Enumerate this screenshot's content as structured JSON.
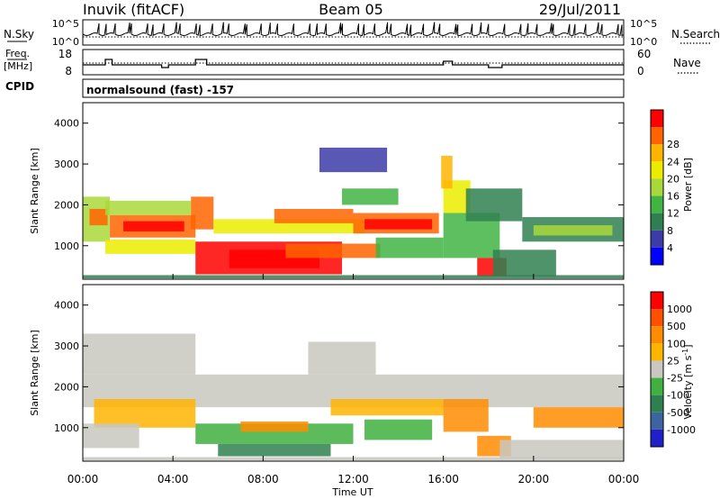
{
  "header": {
    "station": "Inuvik (fitACF)",
    "beam": "Beam 05",
    "date": "29/Jul/2011"
  },
  "strip": {
    "nsky_label": "N.Sky",
    "nsky_ticks": [
      "10^5",
      "10^0"
    ],
    "nsearch_label": "N.Search",
    "nsearch_ticks": [
      "10^5",
      "10^0"
    ],
    "freq_label": "Freq.",
    "freq_unit": "[MHz]",
    "freq_ticks": [
      "18",
      "8"
    ],
    "nave_label": "Nave",
    "nave_ticks": [
      "60",
      "0"
    ],
    "cpid_label": "CPID",
    "cpid_text": "normalsound (fast) -157"
  },
  "chart_data": [
    {
      "type": "heatmap",
      "name": "power",
      "xlabel": "Time UT",
      "ylabel": "Slant Range [km]",
      "xlim": [
        0,
        24
      ],
      "ylim": [
        180,
        4500
      ],
      "y_ticks": [
        "1000",
        "2000",
        "3000",
        "4000"
      ],
      "x_ticks": [
        "00:00",
        "04:00",
        "08:00",
        "12:00",
        "16:00",
        "20:00",
        "00:00"
      ],
      "colorbar_label": "Power [dB]",
      "colorbar_ticks": [
        "4",
        "8",
        "12",
        "16",
        "20",
        "24",
        "28"
      ],
      "colors": [
        "#0000ff",
        "#3c3ca8",
        "#2f8050",
        "#41b443",
        "#a9d83a",
        "#ecec00",
        "#ffb400",
        "#ff6400",
        "#ff0000"
      ],
      "regions": [
        {
          "t0": 0.0,
          "t1": 1.2,
          "r0": 1100,
          "r1": 2200,
          "level": 4
        },
        {
          "t0": 0.3,
          "t1": 1.1,
          "r0": 1500,
          "r1": 1900,
          "level": 7
        },
        {
          "t0": 1.2,
          "t1": 5.0,
          "r0": 1200,
          "r1": 1750,
          "level": 7
        },
        {
          "t0": 1.8,
          "t1": 4.5,
          "r0": 1350,
          "r1": 1600,
          "level": 8
        },
        {
          "t0": 1.0,
          "t1": 4.8,
          "r0": 1750,
          "r1": 2100,
          "level": 4
        },
        {
          "t0": 1.0,
          "t1": 5.0,
          "r0": 800,
          "r1": 1150,
          "level": 5
        },
        {
          "t0": 4.8,
          "t1": 5.8,
          "r0": 1400,
          "r1": 2200,
          "level": 7
        },
        {
          "t0": 5.0,
          "t1": 11.5,
          "r0": 300,
          "r1": 1100,
          "level": 8
        },
        {
          "t0": 6.5,
          "t1": 10.5,
          "r0": 450,
          "r1": 900,
          "level": 8
        },
        {
          "t0": 5.8,
          "t1": 12.5,
          "r0": 1300,
          "r1": 1650,
          "level": 5
        },
        {
          "t0": 8.5,
          "t1": 12.0,
          "r0": 1550,
          "r1": 1900,
          "level": 7
        },
        {
          "t0": 9.0,
          "t1": 13.2,
          "r0": 700,
          "r1": 1050,
          "level": 7
        },
        {
          "t0": 12.0,
          "t1": 15.8,
          "r0": 1300,
          "r1": 1800,
          "level": 7
        },
        {
          "t0": 12.5,
          "t1": 15.5,
          "r0": 1400,
          "r1": 1650,
          "level": 8
        },
        {
          "t0": 11.5,
          "t1": 14.0,
          "r0": 2000,
          "r1": 2400,
          "level": 3
        },
        {
          "t0": 13.0,
          "t1": 16.0,
          "r0": 700,
          "r1": 1200,
          "level": 3
        },
        {
          "t0": 16.0,
          "t1": 17.2,
          "r0": 1800,
          "r1": 2600,
          "level": 5
        },
        {
          "t0": 15.9,
          "t1": 16.4,
          "r0": 2400,
          "r1": 3200,
          "level": 6
        },
        {
          "t0": 16.0,
          "t1": 18.5,
          "r0": 700,
          "r1": 1800,
          "level": 3
        },
        {
          "t0": 17.5,
          "t1": 18.8,
          "r0": 250,
          "r1": 700,
          "level": 8
        },
        {
          "t0": 18.2,
          "t1": 21.0,
          "r0": 250,
          "r1": 900,
          "level": 2
        },
        {
          "t0": 19.5,
          "t1": 24.0,
          "r0": 1100,
          "r1": 1700,
          "level": 2
        },
        {
          "t0": 20.0,
          "t1": 23.5,
          "r0": 1250,
          "r1": 1500,
          "level": 4
        },
        {
          "t0": 17.0,
          "t1": 19.5,
          "r0": 1600,
          "r1": 2400,
          "level": 2
        },
        {
          "t0": 10.5,
          "t1": 13.5,
          "r0": 2800,
          "r1": 3400,
          "level": 1
        },
        {
          "t0": 0.0,
          "t1": 24.0,
          "r0": 200,
          "r1": 280,
          "level": 2
        }
      ]
    },
    {
      "type": "heatmap",
      "name": "velocity",
      "xlabel": "Time UT",
      "ylabel": "Slant Range [km]",
      "xlim": [
        0,
        24
      ],
      "ylim": [
        180,
        4500
      ],
      "y_ticks": [
        "1000",
        "2000",
        "3000",
        "4000"
      ],
      "x_ticks": [
        "00:00",
        "04:00",
        "08:00",
        "12:00",
        "16:00",
        "20:00",
        "00:00"
      ],
      "colorbar_label": "Velocity [m s",
      "colorbar_sup": "-1",
      "colorbar_ticks": [
        "1000",
        "500",
        "100",
        "25",
        "-25",
        "-100",
        "-500",
        "-1000"
      ],
      "colors": [
        "#2020c8",
        "#3c64a0",
        "#2f8050",
        "#40b040",
        "#c8c8c0",
        "#ffb400",
        "#ff8c00",
        "#ff5000",
        "#ff0000"
      ],
      "regions": [
        {
          "t0": 0.0,
          "t1": 24.0,
          "r0": 1500,
          "r1": 2300,
          "level": 4
        },
        {
          "t0": 0.0,
          "t1": 5.0,
          "r0": 2300,
          "r1": 3300,
          "level": 4
        },
        {
          "t0": 0.5,
          "t1": 5.0,
          "r0": 1000,
          "r1": 1700,
          "level": 5
        },
        {
          "t0": 0.0,
          "t1": 2.5,
          "r0": 500,
          "r1": 1100,
          "level": 4
        },
        {
          "t0": 5.0,
          "t1": 12.0,
          "r0": 600,
          "r1": 1100,
          "level": 3
        },
        {
          "t0": 6.0,
          "t1": 11.0,
          "r0": 300,
          "r1": 600,
          "level": 2
        },
        {
          "t0": 7.0,
          "t1": 10.0,
          "r0": 900,
          "r1": 1150,
          "level": 6
        },
        {
          "t0": 11.0,
          "t1": 16.0,
          "r0": 1300,
          "r1": 1700,
          "level": 5
        },
        {
          "t0": 12.5,
          "t1": 15.5,
          "r0": 700,
          "r1": 1200,
          "level": 3
        },
        {
          "t0": 16.0,
          "t1": 18.0,
          "r0": 900,
          "r1": 1700,
          "level": 6
        },
        {
          "t0": 17.5,
          "t1": 19.0,
          "r0": 300,
          "r1": 800,
          "level": 6
        },
        {
          "t0": 20.0,
          "t1": 24.0,
          "r0": 1000,
          "r1": 1500,
          "level": 6
        },
        {
          "t0": 18.5,
          "t1": 24.0,
          "r0": 250,
          "r1": 700,
          "level": 4
        },
        {
          "t0": 10.0,
          "t1": 13.0,
          "r0": 2300,
          "r1": 3100,
          "level": 4
        },
        {
          "t0": 0.0,
          "t1": 24.0,
          "r0": 200,
          "r1": 280,
          "level": 4
        }
      ]
    }
  ]
}
